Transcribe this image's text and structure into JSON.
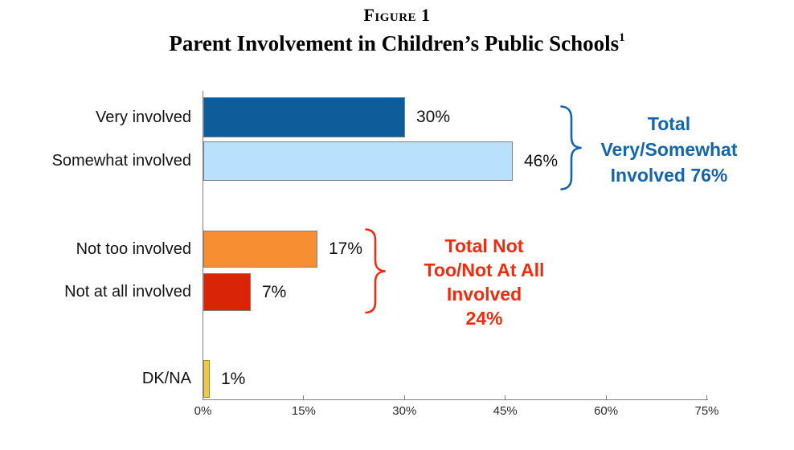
{
  "header": {
    "figure_label": "Figure 1",
    "title": "Parent Involvement in Children’s Public Schools",
    "title_superscript": "1"
  },
  "chart_data": {
    "type": "bar",
    "orientation": "horizontal",
    "title": "Parent Involvement in Children’s Public Schools",
    "categories": [
      "Very involved",
      "Somewhat involved",
      "Not too involved",
      "Not at all involved",
      "DK/NA"
    ],
    "values": [
      30,
      46,
      17,
      7,
      1
    ],
    "value_labels": [
      "30%",
      "46%",
      "17%",
      "7%",
      "1%"
    ],
    "bar_colors": [
      "#0e5c9a",
      "#b9e0fc",
      "#f78e32",
      "#d92408",
      "#eec84a"
    ],
    "bar_border_colors": [
      "#7f7f7f",
      "#7f7f7f",
      "#7f7f7f",
      "#7f7f7f",
      "#a08a28"
    ],
    "xlim": [
      0,
      75
    ],
    "x_tick_labels": [
      "0%",
      "15%",
      "30%",
      "45%",
      "60%",
      "75%"
    ],
    "x_tick_values": [
      0,
      15,
      30,
      45,
      60,
      75
    ],
    "grid": false,
    "legend": false,
    "annotations": [
      {
        "id": "total-very-somewhat",
        "lines": [
          "Total",
          "Very/Somewhat",
          "Involved 76%"
        ],
        "total": "76%",
        "color": "#1565ad",
        "groups": [
          "Very involved",
          "Somewhat involved"
        ]
      },
      {
        "id": "total-not",
        "lines": [
          "Total Not",
          "Too/Not At All",
          "Involved",
          "24%"
        ],
        "total": "24%",
        "color": "#f22b0e",
        "groups": [
          "Not too involved",
          "Not at all involved"
        ]
      }
    ]
  }
}
